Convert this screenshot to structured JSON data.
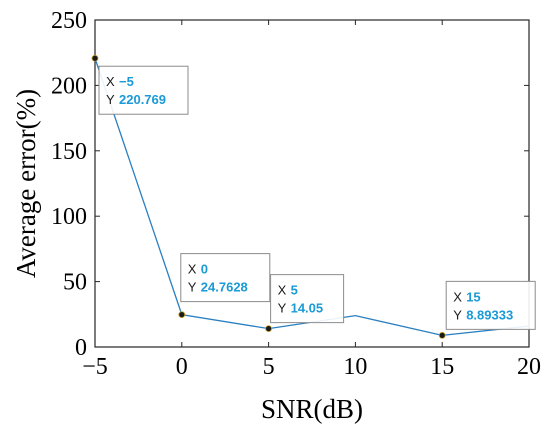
{
  "chart_data": {
    "type": "line",
    "xlabel": "SNR(dB)",
    "ylabel": "Average error(%)",
    "xlim": [
      -5,
      20
    ],
    "ylim": [
      0,
      250
    ],
    "x_ticks": [
      "−5",
      "0",
      "5",
      "10",
      "15",
      "20"
    ],
    "y_ticks": [
      "0",
      "50",
      "100",
      "150",
      "200",
      "250"
    ],
    "grid": false,
    "series": [
      {
        "color": "#2a7fc1",
        "x": [
          -5,
          0,
          5,
          10,
          15,
          20
        ],
        "y": [
          220.769,
          24.7628,
          14.05,
          24.0,
          8.89333,
          16.0
        ]
      }
    ],
    "datatips": [
      {
        "x_key": "X",
        "y_key": "Y",
        "x_value": "−5",
        "y_value": "220.769",
        "x": -5,
        "y": 220.769
      },
      {
        "x_key": "X",
        "y_key": "Y",
        "x_value": "0",
        "y_value": "24.7628",
        "x": 0,
        "y": 24.7628
      },
      {
        "x_key": "X",
        "y_key": "Y",
        "x_value": "5",
        "y_value": "14.05",
        "x": 5,
        "y": 14.05
      },
      {
        "x_key": "X",
        "y_key": "Y",
        "x_value": "15",
        "y_value": "8.89333",
        "x": 15,
        "y": 8.89333
      }
    ]
  }
}
